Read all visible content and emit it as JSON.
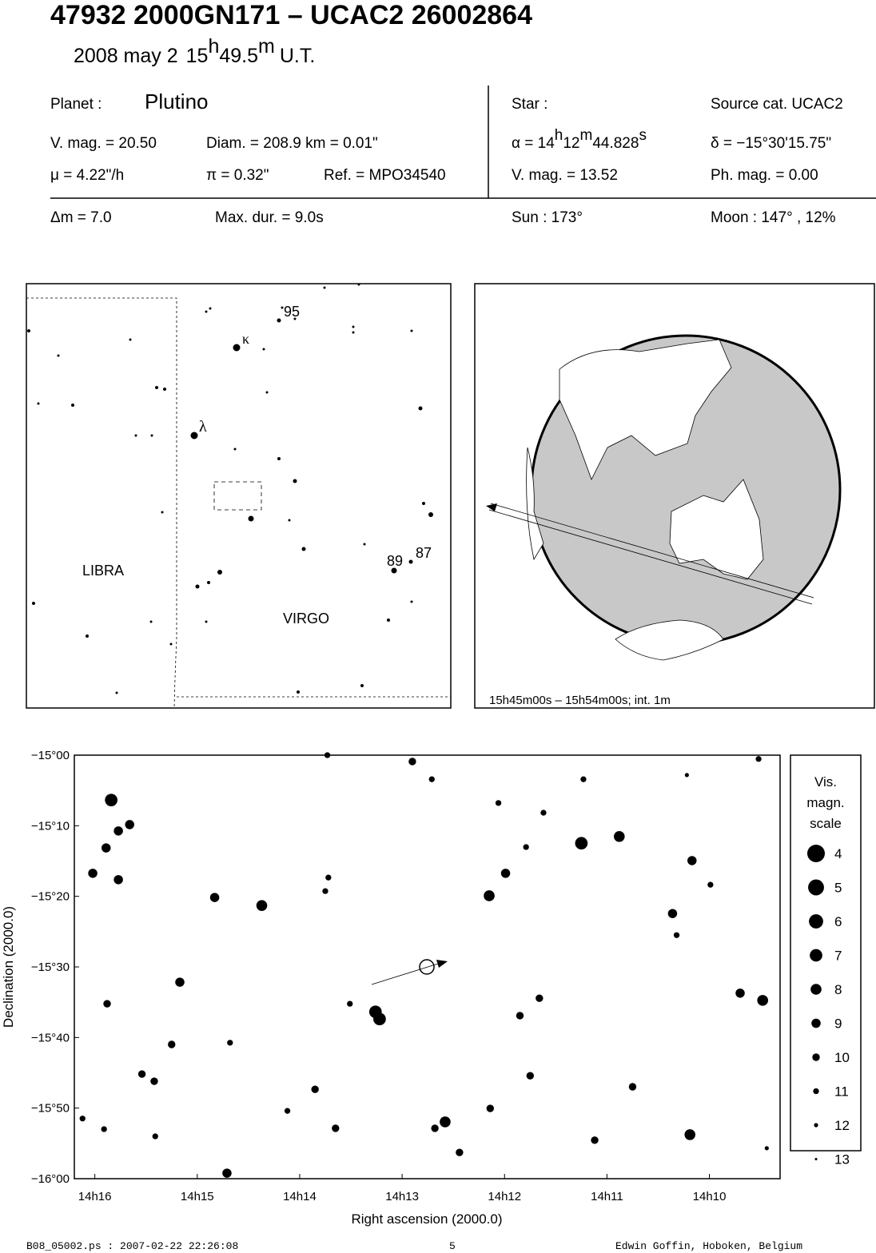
{
  "header": {
    "title": "47932 2000GN171  –  UCAC2 26002864",
    "date": "2008 may  2",
    "time": [
      "15",
      "h",
      "49.5",
      "m",
      "U.T."
    ]
  },
  "planet": {
    "label": "Planet :",
    "name": "Plutino",
    "vmag": "V. mag. = 20.50",
    "diam": "Diam. = 208.9 km = 0.01\"",
    "motion": "μ =  4.22\"/h",
    "parallax": "π =  0.32\"",
    "ref": "Ref. = MPO34540"
  },
  "star": {
    "label": "Star :",
    "source": "Source cat.  UCAC2",
    "ra": [
      "α = 14",
      "h",
      "12",
      "m",
      "44.828",
      "s"
    ],
    "dec": "δ = −15°30'15.75\"",
    "vmag": "V. mag. = 13.52",
    "phmag": "Ph. mag. =  0.00"
  },
  "event": {
    "dm": "Δm = 7.0",
    "maxdur": "Max. dur. = 9.0s",
    "sun": "Sun : 173°",
    "moon": "Moon : 147° , 12%"
  },
  "finder": {
    "labels": [
      "LIBRA",
      "VIRGO",
      "κ",
      "λ",
      "95",
      "89",
      "87"
    ]
  },
  "globe": {
    "caption": "15h45m00s – 15h54m00s; int.  1m"
  },
  "chart_data": {
    "type": "scatter",
    "x_label": "Right ascension (2000.0)",
    "y_label": "Declination (2000.0)",
    "xlim": [
      16.2,
      9.31
    ],
    "ylim": [
      -16,
      -15
    ],
    "xticks": [
      {
        "value": 16,
        "label": "14h16"
      },
      {
        "value": 15,
        "label": "14h15"
      },
      {
        "value": 14,
        "label": "14h14"
      },
      {
        "value": 13,
        "label": "14h13"
      },
      {
        "value": 12,
        "label": "14h12"
      },
      {
        "value": 11,
        "label": "14h11"
      },
      {
        "value": 10,
        "label": "14h10"
      }
    ],
    "yticks": [
      {
        "value": -15,
        "label": "−15°00"
      },
      {
        "value": -15.1667,
        "label": "−15°10"
      },
      {
        "value": -15.3333,
        "label": "−15°20"
      },
      {
        "value": -15.5,
        "label": "−15°30"
      },
      {
        "value": -15.6667,
        "label": "−15°40"
      },
      {
        "value": -15.8333,
        "label": "−15°50"
      },
      {
        "value": -16,
        "label": "−16°00"
      }
    ],
    "color": "#000000",
    "x": [
      15.84,
      15.77,
      15.66,
      15.89,
      16.02,
      15.77,
      14.83,
      14.37,
      15.17,
      15.88,
      13.26,
      13.22,
      12.15,
      11.99,
      11.25,
      10.88,
      10.17,
      10.36,
      9.7,
      9.48,
      11.85,
      11.66,
      12.58,
      13.65,
      14.71,
      13.85,
      15.42,
      15.54,
      10.19,
      10.75,
      11.12,
      12.44,
      12.68,
      12.14,
      11.75,
      15.25,
      14.68,
      12.9,
      13.73,
      12.71,
      12.06,
      11.62,
      11.79,
      11.23,
      13.72,
      13.51,
      13.75,
      15.41,
      16.12,
      15.91,
      9.52,
      10.32,
      9.99,
      14.12,
      9.44,
      10.22
    ],
    "values": [
      -15.106,
      -15.179,
      -15.164,
      -15.219,
      -15.279,
      -15.294,
      -15.336,
      -15.355,
      -15.536,
      -15.587,
      -15.606,
      -15.623,
      -15.332,
      -15.279,
      -15.208,
      -15.192,
      -15.249,
      -15.374,
      -15.562,
      -15.579,
      -15.615,
      -15.574,
      -15.866,
      -15.881,
      -15.987,
      -15.789,
      -15.77,
      -15.753,
      -15.896,
      -15.783,
      -15.909,
      -15.938,
      -15.881,
      -15.834,
      -15.757,
      -15.683,
      -15.679,
      -15.015,
      -15.0,
      -15.057,
      -15.113,
      -15.136,
      -15.217,
      -15.057,
      -15.289,
      -15.587,
      -15.321,
      -15.9,
      -15.858,
      -15.883,
      -15.009,
      -15.425,
      -15.306,
      -15.84,
      -15.928,
      -15.047
    ],
    "magnitudes": [
      7,
      9,
      9,
      9,
      9,
      9,
      9,
      8,
      9,
      10,
      7,
      7,
      8,
      9,
      7,
      8,
      9,
      9,
      9,
      8,
      10,
      10,
      8,
      10,
      9,
      10,
      10,
      10,
      8,
      10,
      10,
      10,
      10,
      10,
      10,
      10,
      11,
      10,
      11,
      11,
      11,
      11,
      11,
      11,
      11,
      11,
      11,
      11,
      11,
      11,
      11,
      11,
      11,
      11,
      12,
      12
    ],
    "size_legend": {
      "title": [
        "Vis.",
        "magn.",
        "scale"
      ],
      "values": [
        4,
        5,
        6,
        7,
        8,
        9,
        10,
        11,
        12,
        13
      ]
    }
  },
  "footer": {
    "file": "B08_05002.ps : 2007-02-22 22:26:08",
    "page": "5",
    "author": "Edwin Goffin, Hoboken, Belgium"
  }
}
